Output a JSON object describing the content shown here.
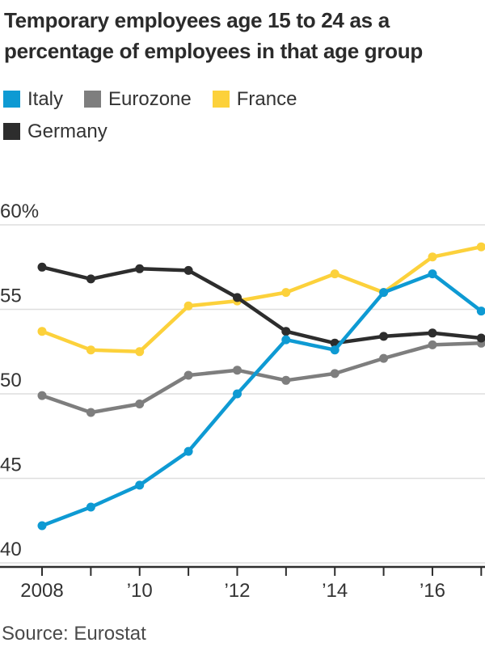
{
  "header": {
    "title_line1": "Temporary employees age 15 to 24 as a",
    "title_line2": "percentage of employees in that age group"
  },
  "source": "Source: Eurostat",
  "colors": {
    "background": "#ffffff",
    "title_text": "#2b2b2b",
    "axis_text": "#333333",
    "grid": "#dedede",
    "axis_line": "#2d2d2d",
    "source_text": "#4a4a4a"
  },
  "chart_data": {
    "type": "line",
    "title": "Temporary employees age 15 to 24 as a percentage of employees in that age group",
    "xlabel": "",
    "ylabel": "",
    "x": [
      2008,
      2009,
      2010,
      2011,
      2012,
      2013,
      2014,
      2015,
      2016,
      2017
    ],
    "x_tick_labels": [
      "2008",
      "",
      "’10",
      "",
      "’12",
      "",
      "’14",
      "",
      "’16",
      ""
    ],
    "y_axis": {
      "range": [
        40,
        60
      ],
      "ticks": [
        60,
        55,
        50,
        45,
        40
      ],
      "tick_labels": [
        "60%",
        "55",
        "50",
        "45",
        "40"
      ]
    },
    "grid": true,
    "legend_position": "top-left",
    "legend_rows": [
      [
        "Italy",
        "Eurozone",
        "France"
      ],
      [
        "Germany"
      ]
    ],
    "draw_order": [
      "Eurozone",
      "France",
      "Germany",
      "Italy"
    ],
    "series": [
      {
        "name": "Italy",
        "color": "#0e9ad3",
        "values": [
          42.2,
          43.3,
          44.6,
          46.6,
          50.0,
          53.2,
          52.6,
          56.0,
          57.1,
          54.9
        ]
      },
      {
        "name": "Eurozone",
        "color": "#7e7e7e",
        "values": [
          49.9,
          48.9,
          49.4,
          51.1,
          51.4,
          50.8,
          51.2,
          52.1,
          52.9,
          53.0
        ]
      },
      {
        "name": "France",
        "color": "#fcd13b",
        "values": [
          53.7,
          52.6,
          52.5,
          55.2,
          55.5,
          56.0,
          57.1,
          56.0,
          58.1,
          58.7
        ]
      },
      {
        "name": "Germany",
        "color": "#2d2d2d",
        "values": [
          57.5,
          56.8,
          57.4,
          57.3,
          55.7,
          53.7,
          53.0,
          53.4,
          53.6,
          53.3
        ]
      }
    ]
  }
}
